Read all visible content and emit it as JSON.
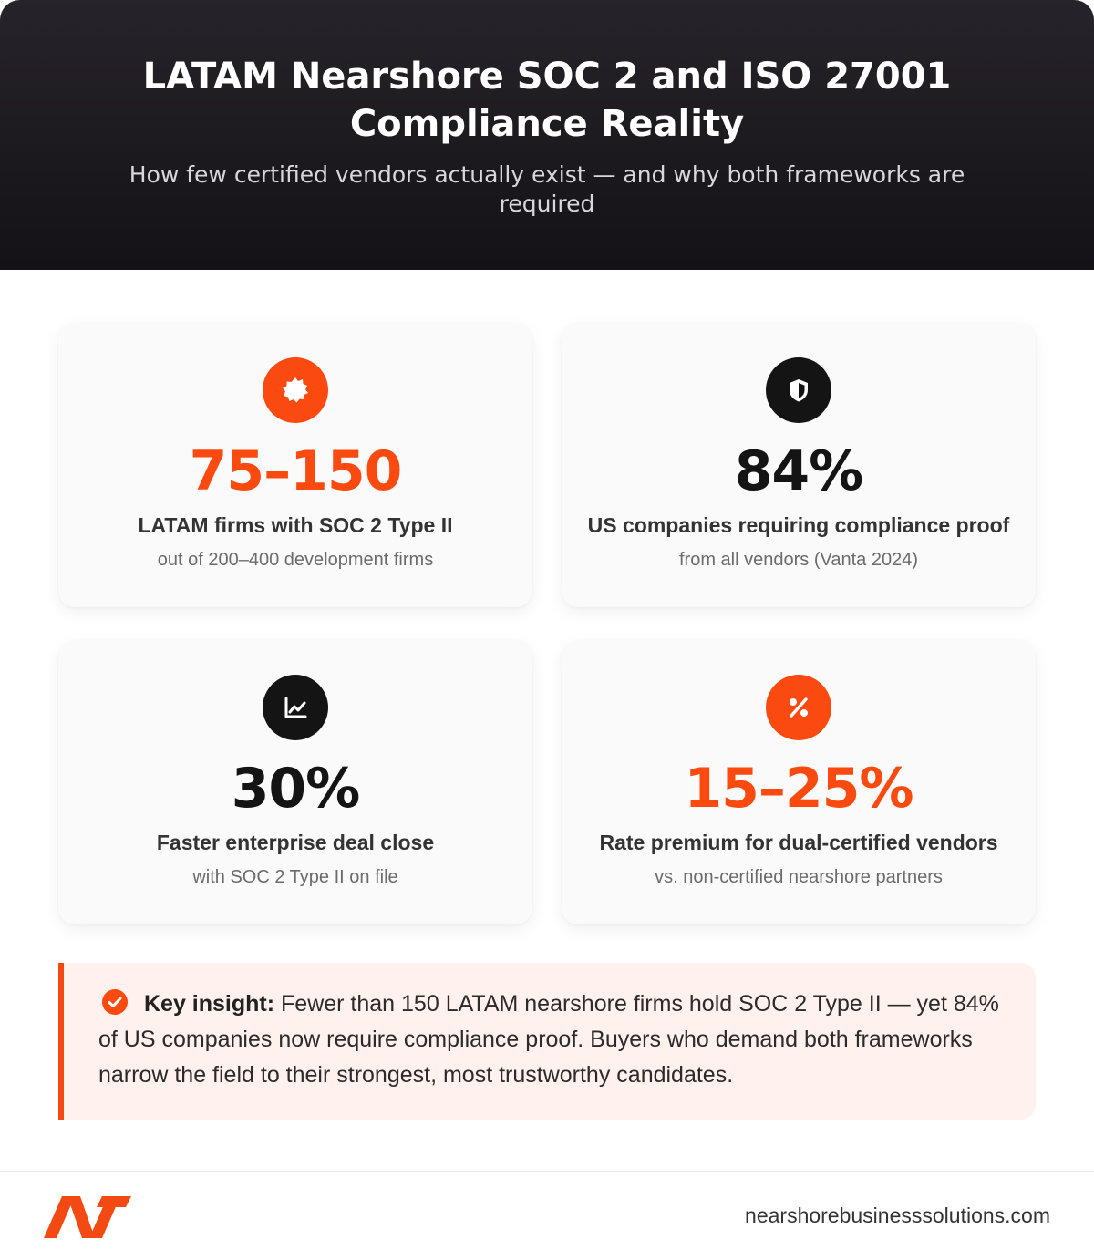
{
  "header": {
    "title": "LATAM Nearshore SOC 2 and ISO 27001 Compliance Reality",
    "subtitle": "How few certified vendors actually exist — and why both frameworks are required"
  },
  "cards": [
    {
      "icon": "badge-icon",
      "accent": "#fb4a10",
      "value": "75–150",
      "label": "LATAM firms with SOC 2 Type II",
      "sub": "out of 200–400 development firms"
    },
    {
      "icon": "shield-icon",
      "accent": "#141414",
      "value": "84%",
      "label": "US companies requiring compliance proof",
      "sub": "from all vendors (Vanta 2024)"
    },
    {
      "icon": "line-chart-icon",
      "accent": "#141414",
      "value": "30%",
      "label": "Faster enterprise deal close",
      "sub": "with SOC 2 Type II on file"
    },
    {
      "icon": "percent-icon",
      "accent": "#fb4a10",
      "value": "15–25%",
      "label": "Rate premium for dual-certified vendors",
      "sub": "vs. non-certified nearshore partners"
    }
  ],
  "insight": {
    "icon": "check-circle-icon",
    "bold": "Key insight:",
    "text": " Fewer than 150 LATAM nearshore firms hold SOC 2 Type II — yet 84% of US companies now require compliance proof. Buyers who demand both frameworks narrow the field to their strongest, most trustworthy candidates."
  },
  "footer": {
    "logo_icon": "nearshore-logo-icon",
    "website": "nearshorebusinesssolutions.com"
  },
  "colors": {
    "accent": "#fb4a10",
    "dark": "#141414",
    "insight_bg": "#fff1ee"
  }
}
